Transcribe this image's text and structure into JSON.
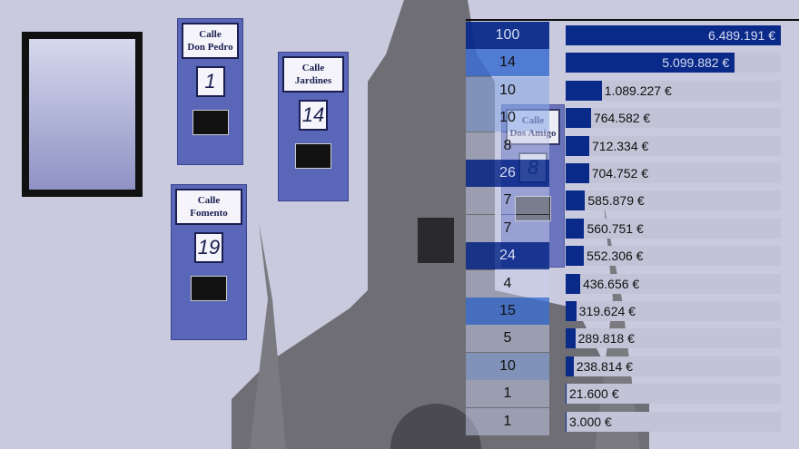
{
  "signs": [
    {
      "line1": "Calle",
      "line2": "Don Pedro",
      "number": "1"
    },
    {
      "line1": "Calle",
      "line2": "Jardines",
      "number": "14"
    },
    {
      "line1": "Calle",
      "line2": "Fomento",
      "number": "19"
    },
    {
      "line1": "Calle",
      "line2": "Dos Amigo",
      "number": "8"
    }
  ],
  "colors": {
    "bar": "#0a2a8a",
    "track": "#c2c3d6",
    "background": "#c9cade"
  },
  "chart_data": {
    "type": "bar",
    "orientation": "horizontal",
    "counts": [
      "100",
      "14",
      "10",
      "10",
      "8",
      "26",
      "7",
      "7",
      "24",
      "4",
      "15",
      "5",
      "10",
      "1",
      "1"
    ],
    "values": [
      6489191,
      5099882,
      1089227,
      764582,
      712334,
      704752,
      585879,
      560751,
      552306,
      436656,
      319624,
      289818,
      238814,
      21600,
      3000
    ],
    "labels": [
      "6.489.191 €",
      "5.099.882 €",
      "1.089.227 €",
      "764.582 €",
      "712.334 €",
      "704.752 €",
      "585.879 €",
      "560.751 €",
      "552.306 €",
      "436.656 €",
      "319.624 €",
      "289.818 €",
      "238.814 €",
      "21.600 €",
      "3.000 €"
    ],
    "xlim": [
      0,
      6489191
    ]
  }
}
